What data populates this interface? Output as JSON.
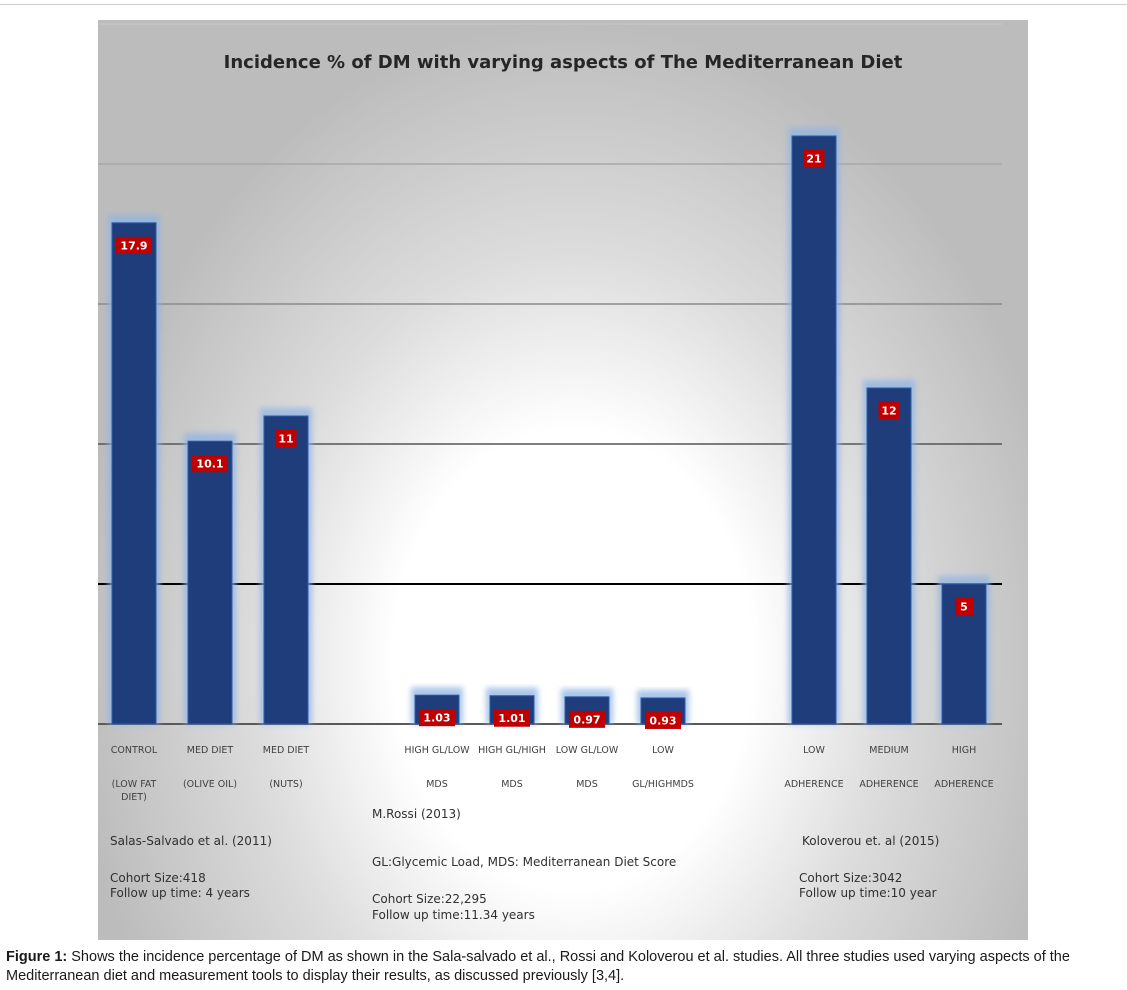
{
  "chart_data": {
    "type": "bar",
    "title": "Incidence % of DM with varying aspects of The Mediterranean Diet",
    "categories": [
      {
        "lines": [
          "CONTROL",
          "(LOW FAT",
          "DIET)"
        ]
      },
      {
        "lines": [
          "MED DIET",
          "(OLIVE OIL)"
        ]
      },
      {
        "lines": [
          "MED DIET",
          "(NUTS)"
        ]
      },
      {
        "lines": [
          "HIGH GL/LOW",
          "MDS"
        ]
      },
      {
        "lines": [
          "HIGH GL/HIGH",
          "MDS"
        ]
      },
      {
        "lines": [
          "LOW GL/LOW",
          "MDS"
        ]
      },
      {
        "lines": [
          "LOW",
          "GL/HIGHMDS"
        ]
      },
      {
        "lines": [
          "LOW",
          "ADHERENCE"
        ]
      },
      {
        "lines": [
          "MEDIUM",
          "ADHERENCE"
        ]
      },
      {
        "lines": [
          "HIGH",
          "ADHERENCE"
        ]
      }
    ],
    "values": [
      17.9,
      10.1,
      11,
      1.03,
      1.01,
      0.97,
      0.93,
      21,
      12,
      5
    ],
    "data_labels": [
      "17.9",
      "10.1",
      "11",
      "1.03",
      "1.01",
      "0.97",
      "0.93",
      "21",
      "12",
      "5"
    ],
    "ylim": [
      0,
      25
    ],
    "gridlines": [
      5,
      10,
      15,
      20,
      25
    ],
    "bar_color": "#1f3d7a",
    "label_color": "#c00000",
    "legend": "none"
  },
  "annotations": {
    "salas_author": "Salas-Salvado et al. (2011)",
    "salas_cohort": "Cohort Size:418",
    "salas_follow": "Follow up time: 4 years",
    "rossi_author": "M.Rossi (2013)",
    "rossi_defs": "GL:Glycemic Load, MDS: Mediterranean Diet Score",
    "rossi_cohort": "Cohort Size:22,295",
    "rossi_follow": "Follow up time:11.34 years",
    "kolo_author": "Koloverou et. al (2015)",
    "kolo_cohort": "Cohort Size:3042",
    "kolo_follow": "Follow up time:10 year"
  },
  "caption": {
    "label": "Figure 1:",
    "text": " Shows the incidence percentage of DM as shown in the Sala-salvado et al., Rossi and Koloverou et al. studies. All three studies used varying aspects of the Mediterranean diet and measurement tools to display their results, as discussed previously [3,4]."
  }
}
